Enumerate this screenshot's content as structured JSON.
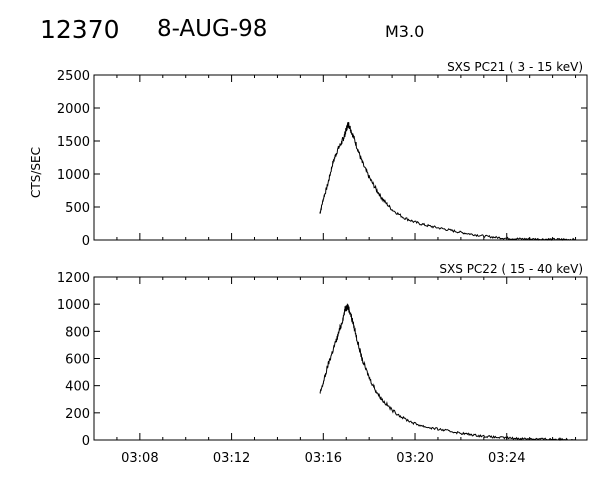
{
  "header": {
    "flare_id": "12370",
    "date": "8-AUG-98",
    "goes_class": "M3.0"
  },
  "colors": {
    "background": "#ffffff",
    "line": "#000000"
  },
  "chart_data": [
    {
      "type": "line",
      "title": "SXS PC21  (  3 - 15 keV)",
      "ylabel": "CTS/SEC",
      "xlabel": "",
      "ylim": [
        0,
        2500
      ],
      "yticks": [
        0,
        500,
        1000,
        1500,
        2000,
        2500
      ],
      "ytick_labels": [
        "0",
        "500",
        "1000",
        "1500",
        "2000",
        "2500"
      ],
      "xlim_minutes": [
        186,
        207.5
      ],
      "xticks_minutes": [
        188,
        192,
        196,
        200,
        204
      ],
      "xtick_labels": [],
      "grid": false,
      "x_minutes": [
        195.85,
        196.0,
        196.2,
        196.4,
        196.6,
        196.8,
        196.9,
        197.0,
        197.08,
        197.15,
        197.3,
        197.5,
        197.7,
        198.0,
        198.3,
        198.6,
        199.0,
        199.5,
        200.0,
        200.5,
        201.0,
        201.5,
        202.0,
        202.5,
        203.0,
        203.5,
        204.0,
        204.5,
        205.0,
        205.5,
        206.0,
        206.5,
        207.0
      ],
      "y": [
        400,
        620,
        850,
        1150,
        1350,
        1480,
        1560,
        1670,
        1760,
        1720,
        1580,
        1380,
        1170,
        950,
        770,
        610,
        460,
        340,
        270,
        220,
        185,
        150,
        115,
        85,
        60,
        40,
        25,
        18,
        15,
        12,
        10,
        9,
        8
      ]
    },
    {
      "type": "line",
      "title": "SXS PC22  ( 15 - 40 keV)",
      "ylabel": "",
      "xlabel": "",
      "ylim": [
        0,
        1200
      ],
      "yticks": [
        0,
        200,
        400,
        600,
        800,
        1000,
        1200
      ],
      "ytick_labels": [
        "0",
        "200",
        "400",
        "600",
        "800",
        "1000",
        "1200"
      ],
      "xlim_minutes": [
        186,
        207.5
      ],
      "xticks_minutes": [
        188,
        192,
        196,
        200,
        204
      ],
      "xtick_labels": [
        "03:08",
        "03:12",
        "03:16",
        "03:20",
        "03:24"
      ],
      "grid": false,
      "x_minutes": [
        195.85,
        196.0,
        196.2,
        196.4,
        196.6,
        196.8,
        196.95,
        197.05,
        197.15,
        197.3,
        197.5,
        197.7,
        198.0,
        198.3,
        198.6,
        199.0,
        199.5,
        200.0,
        200.5,
        201.0,
        201.5,
        202.0,
        202.5,
        203.0,
        203.5,
        204.0,
        204.5,
        205.0,
        205.5,
        206.0,
        206.5,
        207.0
      ],
      "y": [
        340,
        420,
        550,
        650,
        750,
        860,
        960,
        990,
        950,
        860,
        720,
        590,
        460,
        360,
        290,
        220,
        160,
        120,
        95,
        80,
        65,
        50,
        38,
        28,
        20,
        15,
        11,
        9,
        7,
        6,
        5,
        4
      ]
    }
  ]
}
